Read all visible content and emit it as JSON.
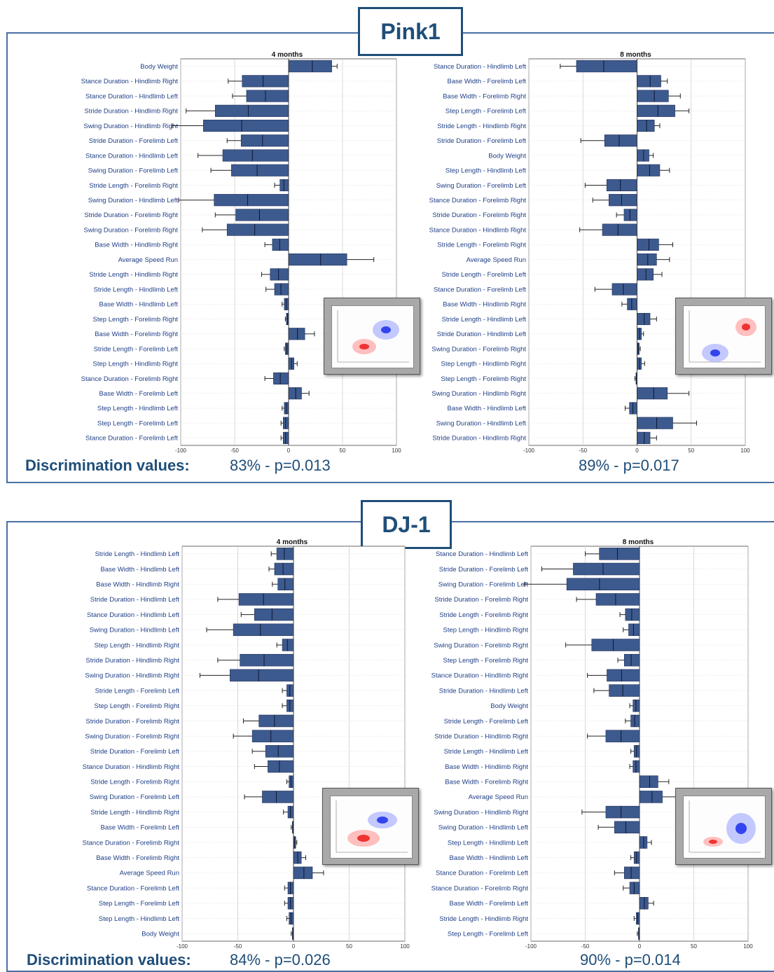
{
  "panels": [
    {
      "title": "Pink1",
      "disc_label": "Discrimination values:",
      "disc_values": [
        "83%  - p=0.013",
        "89%  - p=0.017"
      ]
    },
    {
      "title": "DJ-1",
      "disc_label": "Discrimination values:",
      "disc_values": [
        "84%  - p=0.026",
        "90%  - p=0.014"
      ]
    }
  ],
  "colors": {
    "bar": "#3d5a8f",
    "bar_edge": "#1f2f55",
    "grid": "#c8c8c8",
    "frame": "#4a6fa5",
    "title": "#1f4e79",
    "inset_blue": "#3344ee",
    "inset_red": "#ee3333"
  },
  "chart_data": [
    {
      "type": "bar",
      "orientation": "horizontal",
      "title": "4 months",
      "xlim": [
        -100,
        100
      ],
      "xticks": [
        -100,
        -50,
        0,
        50,
        100
      ],
      "xlabel": "",
      "ylabel": "",
      "grid": true,
      "categories": [
        "Body Weight",
        "Stance Duration - Hindlimb Right",
        "Stance Duration - Hindlimb Left",
        "Stride Duration - Hindlimb Right",
        "Swing Duration - Hindlimb Right",
        "Stride Duration - Forelimb Left",
        "Stance Duration - Hindlimb Left",
        "Swing Duration - Forelimb Left",
        "Stride Length - Forelimb Right",
        "Swing Duration - Hindlimb Left",
        "Stride Duration - Forelimb Right",
        "Swing Duration - Forelimb Right",
        "Base Width - Hindlimb Right",
        "Average Speed Run",
        "Stride Length - Hindlimb Right",
        "Stride Length - Hindlimb Left",
        "Base Width - Hindlimb Left",
        "Step Length - Forelimb Right",
        "Base Width - Forelimb Right",
        "Stride Length - Forelimb Left",
        "Step Length - Hindlimb Right",
        "Stance Duration - Forelimb Right",
        "Base Width - Forelimb Left",
        "Step Length - Hindlimb Left",
        "Step Length - Forelimb Left",
        "Stance Duration - Forelimb Left"
      ],
      "values": [
        40,
        -43,
        -39,
        -68,
        -79,
        -44,
        -61,
        -53,
        -8,
        -69,
        -49,
        -57,
        -15,
        54,
        -17,
        -13,
        -4,
        -2,
        15,
        -3,
        5,
        -14,
        12,
        -4,
        -5,
        -5
      ],
      "errors": [
        5,
        13,
        13,
        27,
        29,
        13,
        23,
        19,
        5,
        33,
        19,
        23,
        7,
        25,
        8,
        8,
        2,
        1,
        9,
        1,
        3,
        8,
        7,
        2,
        2,
        2
      ]
    },
    {
      "type": "bar",
      "orientation": "horizontal",
      "title": "8 months",
      "xlim": [
        -100,
        100
      ],
      "xticks": [
        -100,
        -50,
        0,
        50,
        100
      ],
      "xlabel": "",
      "ylabel": "",
      "grid": true,
      "categories": [
        "Stance Duration - Hindlimb Left",
        "Base Width - Forelimb Left",
        "Base Width - Forelimb Right",
        "Step Length - Forelimb Left",
        "Stride Length - Hindlimb Right",
        "Stride Duration - Forelimb Left",
        "Body Weight",
        "Step Length - Hindlimb Left",
        "Swing Duration - Forelimb Left",
        "Stance Duration - Forelimb Right",
        "Stride Duration - Forelimb Right",
        "Stance Duration - Hindlimb Right",
        "Stride Length - Forelimb Right",
        "Average Speed Run",
        "Stride Length - Forelimb Left",
        "Stance Duration - Forelimb Left",
        "Base Width - Hindlimb Right",
        "Stride Length - Hindlimb Left",
        "Stride Duration - Hindlimb Left",
        "Swing Duration - Forelimb Right",
        "Step Length - Hindlimb Right",
        "Step Length - Forelimb Right",
        "Swing Duration - Hindlimb Right",
        "Base Width - Hindlimb Left",
        "Swing Duration - Hindlimb Left",
        "Stride Duration - Hindlimb Right"
      ],
      "values": [
        -56,
        22,
        29,
        35,
        16,
        -30,
        11,
        21,
        -28,
        -26,
        -12,
        -32,
        20,
        18,
        15,
        -23,
        -9,
        12,
        4,
        2,
        4,
        -1,
        28,
        -7,
        33,
        12
      ],
      "errors": [
        15,
        6,
        11,
        13,
        5,
        22,
        4,
        9,
        20,
        15,
        7,
        21,
        13,
        12,
        8,
        16,
        5,
        6,
        2,
        1,
        3,
        1,
        20,
        4,
        22,
        6
      ]
    },
    {
      "type": "bar",
      "orientation": "horizontal",
      "title": "4 months",
      "xlim": [
        -100,
        100
      ],
      "xticks": [
        -100,
        -50,
        0,
        50,
        100
      ],
      "xlabel": "",
      "ylabel": "",
      "grid": true,
      "categories": [
        "Stride Length - Hindlimb Left",
        "Base Width - Hindlimb Left",
        "Base Width - Hindlimb Right",
        "Stride Duration - Hindlimb Left",
        "Stance Duration - Hindlimb Left",
        "Swing Duration - Hindlimb Left",
        "Step Length - Hindlimb Right",
        "Stride Duration - Hindlimb Right",
        "Swing Duration - Hindlimb Right",
        "Stride Length - Forelimb Left",
        "Step Length - Forelimb Right",
        "Stride Duration - Forelimb Right",
        "Swing Duration - Forelimb Right",
        "Stride Duration - Forelimb Left",
        "Stance Duration - Hindlimb Right",
        "Stride Length - Forelimb Right",
        "Swing Duration - Forelimb Left",
        "Stride Length - Hindlimb Right",
        "Base Width - Forelimb Left",
        "Stance Duration - Forelimb Right",
        "Base Width - Forelimb Right",
        "Average Speed Run",
        "Stance Duration - Forelimb Left",
        "Step Length - Forelimb Left",
        "Step Length - Hindlimb Left",
        "Body Weight"
      ],
      "values": [
        -15,
        -17,
        -14,
        -49,
        -35,
        -54,
        -10,
        -48,
        -57,
        -6,
        -6,
        -31,
        -37,
        -25,
        -23,
        -4,
        -28,
        -5,
        -1,
        2,
        7,
        17,
        -5,
        -5,
        -4,
        -1
      ],
      "errors": [
        5,
        5,
        5,
        19,
        12,
        24,
        5,
        20,
        27,
        4,
        4,
        14,
        17,
        12,
        12,
        2,
        16,
        4,
        1,
        1,
        4,
        10,
        3,
        3,
        2,
        1
      ]
    },
    {
      "type": "bar",
      "orientation": "horizontal",
      "title": "8 months",
      "xlim": [
        -100,
        100
      ],
      "xticks": [
        -100,
        -50,
        0,
        50,
        100
      ],
      "xlabel": "",
      "ylabel": "",
      "grid": true,
      "categories": [
        "Stance Duration - Hindlimb Left",
        "Stride Duration - Forelimb Left",
        "Swing Duration - Forelimb Left",
        "Stride Duration - Forelimb Right",
        "Stride Length - Forelimb Right",
        "Step Length - Hindlimb Right",
        "Swing Duration - Forelimb Right",
        "Step Length - Forelimb Right",
        "Stance Duration - Hindlimb Right",
        "Stride Duration - Hindlimb Left",
        "Body Weight",
        "Stride Length - Forelimb Left",
        "Stride Duration - Hindlimb Right",
        "Stride Length - Hindlimb Left",
        "Base Width - Hindlimb Right",
        "Base Width - Forelimb Right",
        "Average Speed Run",
        "Swing Duration - Hindlimb Right",
        "Swing Duration - Hindlimb Left",
        "Step Length - Hindlimb Left",
        "Base Width - Hindlimb Left",
        "Stance Duration - Forelimb Left",
        "Stance Duration - Forelimb Right",
        "Base Width - Forelimb Left",
        "Stride Length - Hindlimb Right",
        "Step Length - Forelimb Left"
      ],
      "values": [
        -37,
        -61,
        -67,
        -40,
        -13,
        -10,
        -44,
        -14,
        -30,
        -28,
        -6,
        -8,
        -31,
        -5,
        -6,
        17,
        21,
        -31,
        -23,
        7,
        -5,
        -14,
        -9,
        8,
        -3,
        -1
      ],
      "errors": [
        13,
        29,
        39,
        18,
        5,
        5,
        24,
        6,
        18,
        14,
        3,
        5,
        17,
        3,
        3,
        10,
        13,
        22,
        15,
        4,
        3,
        9,
        6,
        5,
        2,
        1
      ]
    }
  ]
}
